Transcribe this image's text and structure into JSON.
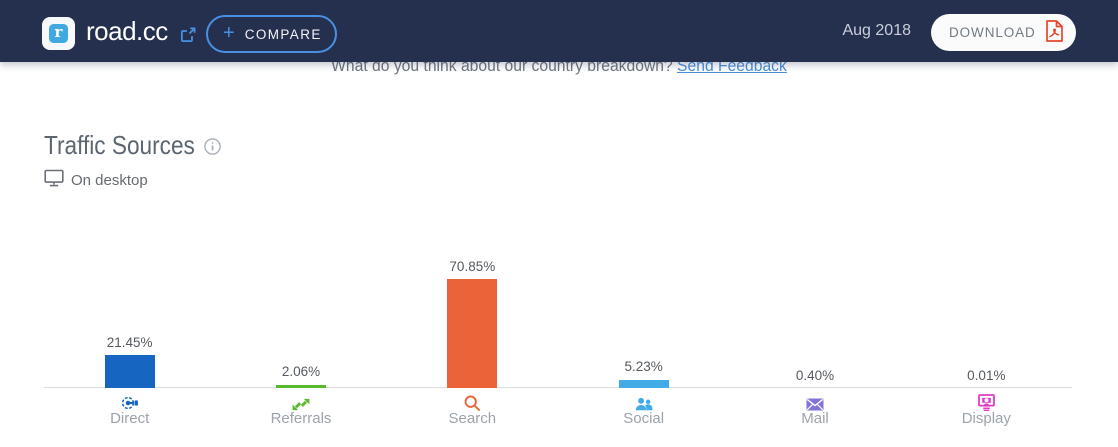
{
  "header": {
    "site_name": "road.cc",
    "logo_letter": "r",
    "compare": {
      "plus": "+",
      "label": "COMPARE"
    },
    "period": "Aug 2018",
    "download_label": "DOWNLOAD",
    "colors": {
      "bar_background": "#242f51",
      "accent_blue": "#4a90e2",
      "pdf_red": "#e8452c"
    }
  },
  "feedback": {
    "question": "What do you think about our country breakdown? ",
    "link_label": "Send Feedback"
  },
  "section": {
    "title": "Traffic Sources",
    "subtitle": "On desktop"
  },
  "chart_data": {
    "type": "bar",
    "title": "Traffic Sources",
    "subtitle": "On desktop",
    "categories": [
      "Direct",
      "Referrals",
      "Search",
      "Social",
      "Mail",
      "Display"
    ],
    "values": [
      21.45,
      2.06,
      70.85,
      5.23,
      0.4,
      0.01
    ],
    "value_labels": [
      "21.45%",
      "2.06%",
      "70.85%",
      "5.23%",
      "0.40%",
      "0.01%"
    ],
    "bar_colors": [
      "#1565c1",
      "#5ab82d",
      "#eb6439",
      "#41abe8",
      "#8273d8",
      "#e03cc6"
    ],
    "icon_names": [
      "direct-icon",
      "referrals-icon",
      "search-icon",
      "social-icon",
      "mail-icon",
      "display-icon"
    ],
    "unit": "%",
    "ylim": [
      0,
      100
    ],
    "grid": false,
    "legend": false
  }
}
